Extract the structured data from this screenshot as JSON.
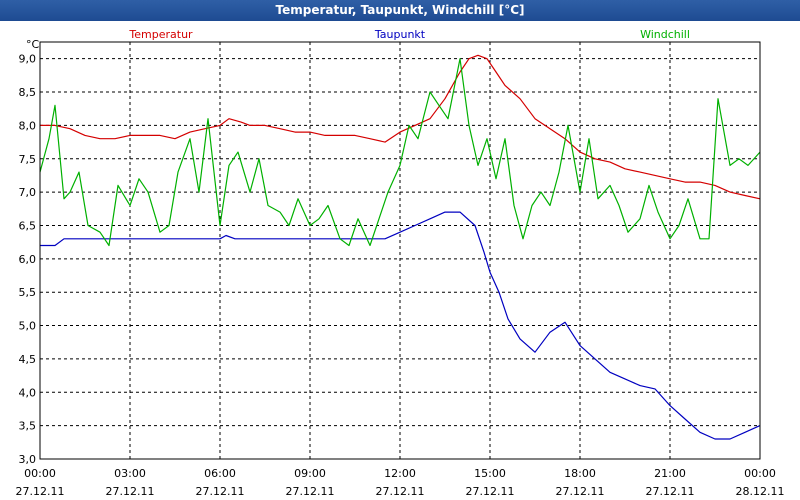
{
  "window": {
    "title": "Temperatur, Taupunkt, Windchill [°C]"
  },
  "chart_data": {
    "type": "line",
    "title": "Temperatur, Taupunkt, Windchill [°C]",
    "ylabel": "°C",
    "ylim": [
      3.0,
      9.25
    ],
    "xlim_hours": [
      0,
      24
    ],
    "grid": true,
    "legend": "top",
    "y_ticks": [
      "9,0",
      "8,5",
      "8,0",
      "7,5",
      "7,0",
      "6,5",
      "6,0",
      "5,5",
      "5,0",
      "4,5",
      "4,0",
      "3,5",
      "3,0"
    ],
    "x_ticks": [
      {
        "time": "00:00",
        "date": "27.12.11"
      },
      {
        "time": "03:00",
        "date": "27.12.11"
      },
      {
        "time": "06:00",
        "date": "27.12.11"
      },
      {
        "time": "09:00",
        "date": "27.12.11"
      },
      {
        "time": "12:00",
        "date": "27.12.11"
      },
      {
        "time": "15:00",
        "date": "27.12.11"
      },
      {
        "time": "18:00",
        "date": "27.12.11"
      },
      {
        "time": "21:00",
        "date": "27.12.11"
      },
      {
        "time": "00:00",
        "date": "28.12.11"
      }
    ],
    "series": [
      {
        "name": "Temperatur",
        "color": "#d40000",
        "x": [
          0,
          0.5,
          1,
          1.5,
          2,
          2.5,
          3,
          3.5,
          4,
          4.5,
          5,
          5.5,
          6,
          6.3,
          6.7,
          7,
          7.5,
          8,
          8.5,
          9,
          9.5,
          10,
          10.5,
          11,
          11.5,
          12,
          12.5,
          13,
          13.5,
          14,
          14.3,
          14.6,
          14.9,
          15.2,
          15.5,
          16,
          16.5,
          17,
          17.5,
          18,
          18.5,
          19,
          19.5,
          20,
          20.5,
          21,
          21.5,
          22,
          22.5,
          23,
          23.5,
          24
        ],
        "values": [
          8.0,
          8.0,
          7.95,
          7.85,
          7.8,
          7.8,
          7.85,
          7.85,
          7.85,
          7.8,
          7.9,
          7.95,
          8.0,
          8.1,
          8.05,
          8.0,
          8.0,
          7.95,
          7.9,
          7.9,
          7.85,
          7.85,
          7.85,
          7.8,
          7.75,
          7.9,
          8.0,
          8.1,
          8.4,
          8.8,
          9.0,
          9.05,
          9.0,
          8.8,
          8.6,
          8.4,
          8.1,
          7.95,
          7.8,
          7.6,
          7.5,
          7.45,
          7.35,
          7.3,
          7.25,
          7.2,
          7.15,
          7.15,
          7.1,
          7.0,
          6.95,
          6.9
        ]
      },
      {
        "name": "Taupunkt",
        "color": "#0000c0",
        "x": [
          0,
          0.5,
          0.8,
          1,
          2,
          3,
          4,
          5,
          6,
          6.2,
          6.5,
          7,
          8,
          9,
          10,
          11,
          11.5,
          12,
          12.5,
          13,
          13.5,
          14,
          14.5,
          14.8,
          15,
          15.3,
          15.6,
          16,
          16.5,
          17,
          17.5,
          18,
          18.5,
          19,
          19.5,
          20,
          20.5,
          21,
          21.5,
          22,
          22.5,
          23,
          23.5,
          24
        ],
        "values": [
          6.2,
          6.2,
          6.3,
          6.3,
          6.3,
          6.3,
          6.3,
          6.3,
          6.3,
          6.35,
          6.3,
          6.3,
          6.3,
          6.3,
          6.3,
          6.3,
          6.3,
          6.4,
          6.5,
          6.6,
          6.7,
          6.7,
          6.5,
          6.1,
          5.8,
          5.5,
          5.1,
          4.8,
          4.6,
          4.9,
          5.05,
          4.7,
          4.5,
          4.3,
          4.2,
          4.1,
          4.05,
          3.8,
          3.6,
          3.4,
          3.3,
          3.3,
          3.4,
          3.5
        ]
      },
      {
        "name": "Windchill",
        "color": "#00b000",
        "x": [
          0,
          0.3,
          0.5,
          0.8,
          1,
          1.3,
          1.6,
          2,
          2.3,
          2.6,
          3,
          3.3,
          3.6,
          4,
          4.3,
          4.6,
          5,
          5.3,
          5.6,
          6,
          6.3,
          6.6,
          7,
          7.3,
          7.6,
          8,
          8.3,
          8.6,
          9,
          9.3,
          9.6,
          10,
          10.3,
          10.6,
          11,
          11.3,
          11.6,
          12,
          12.3,
          12.6,
          13,
          13.3,
          13.6,
          14,
          14.3,
          14.6,
          14.9,
          15.2,
          15.5,
          15.8,
          16.1,
          16.4,
          16.7,
          17,
          17.3,
          17.6,
          18,
          18.3,
          18.6,
          19,
          19.3,
          19.6,
          20,
          20.3,
          20.6,
          21,
          21.3,
          21.6,
          22,
          22.3,
          22.6,
          23,
          23.3,
          23.6,
          24
        ],
        "values": [
          7.3,
          7.8,
          8.3,
          6.9,
          7.0,
          7.3,
          6.5,
          6.4,
          6.2,
          7.1,
          6.8,
          7.2,
          7.0,
          6.4,
          6.5,
          7.3,
          7.8,
          7.0,
          8.1,
          6.5,
          7.4,
          7.6,
          7.0,
          7.5,
          6.8,
          6.7,
          6.5,
          6.9,
          6.5,
          6.6,
          6.8,
          6.3,
          6.2,
          6.6,
          6.2,
          6.6,
          7.0,
          7.4,
          8.0,
          7.8,
          8.5,
          8.3,
          8.1,
          9.0,
          8.0,
          7.4,
          7.8,
          7.2,
          7.8,
          6.8,
          6.3,
          6.8,
          7.0,
          6.8,
          7.3,
          8.0,
          7.0,
          7.8,
          6.9,
          7.1,
          6.8,
          6.4,
          6.6,
          7.1,
          6.7,
          6.3,
          6.5,
          6.9,
          6.3,
          6.3,
          8.4,
          7.4,
          7.5,
          7.4,
          7.6
        ]
      }
    ]
  }
}
